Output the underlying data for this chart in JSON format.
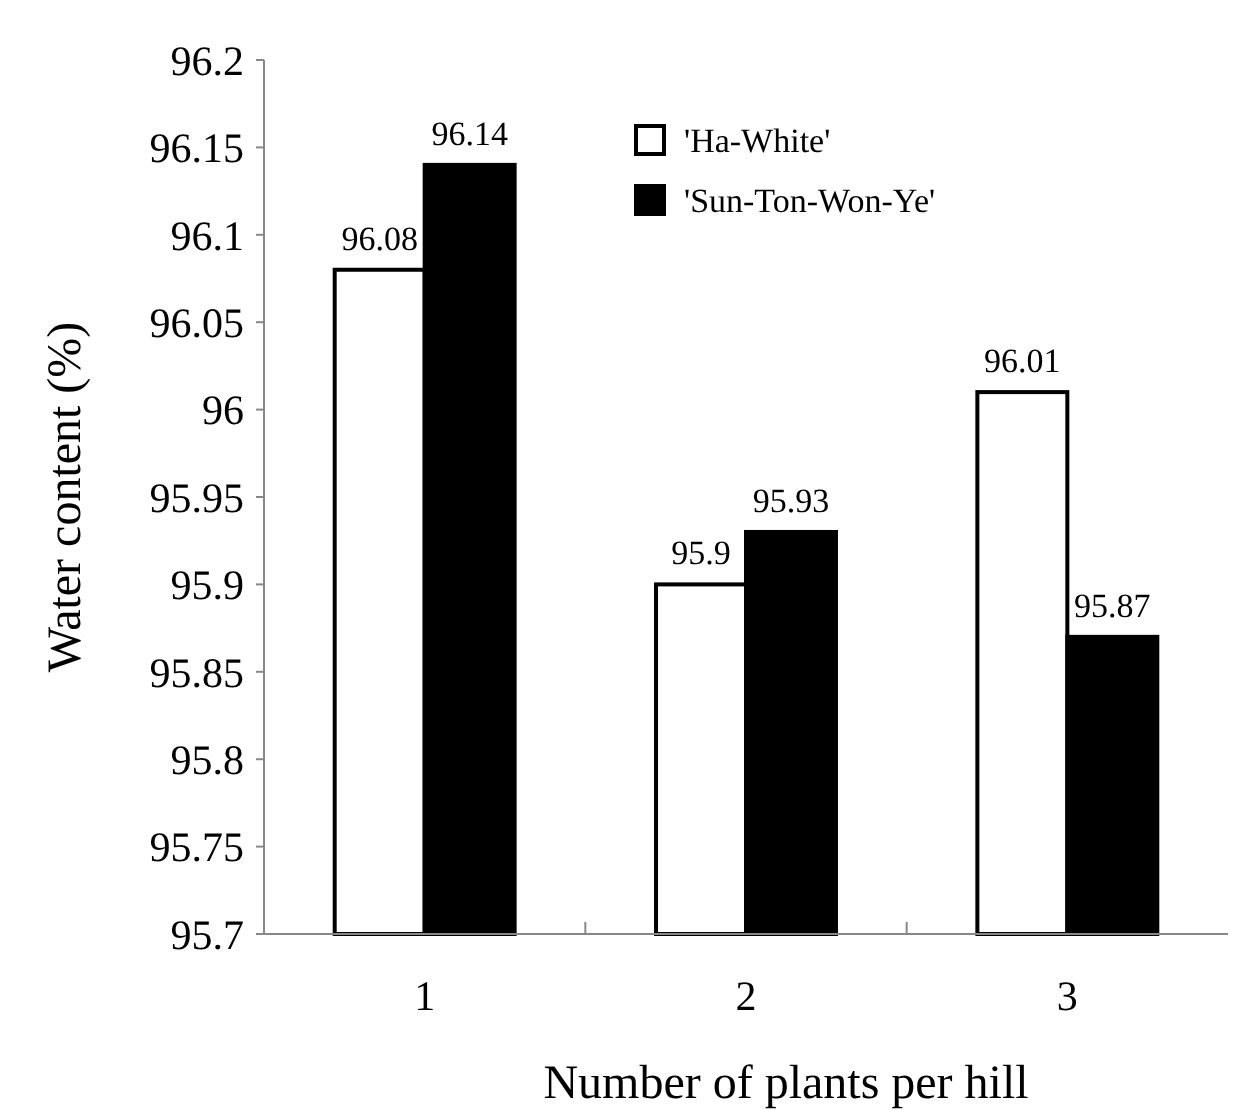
{
  "chart_data": {
    "type": "bar",
    "xlabel": "Number of plants per hill",
    "ylabel": "Water content (%)",
    "categories": [
      "1",
      "2",
      "3"
    ],
    "series": [
      {
        "name": "'Ha-White'",
        "color": "#ffffff",
        "values": [
          96.08,
          95.9,
          96.01
        ]
      },
      {
        "name": "'Sun-Ton-Won-Ye'",
        "color": "#000000",
        "values": [
          96.14,
          95.93,
          95.87
        ]
      }
    ],
    "ylim": [
      95.7,
      96.2
    ],
    "yticks": [
      95.7,
      95.75,
      95.8,
      95.85,
      95.9,
      95.95,
      96,
      96.05,
      96.1,
      96.15,
      96.2
    ],
    "data_labels": true,
    "legend": "top right",
    "grid": false
  }
}
